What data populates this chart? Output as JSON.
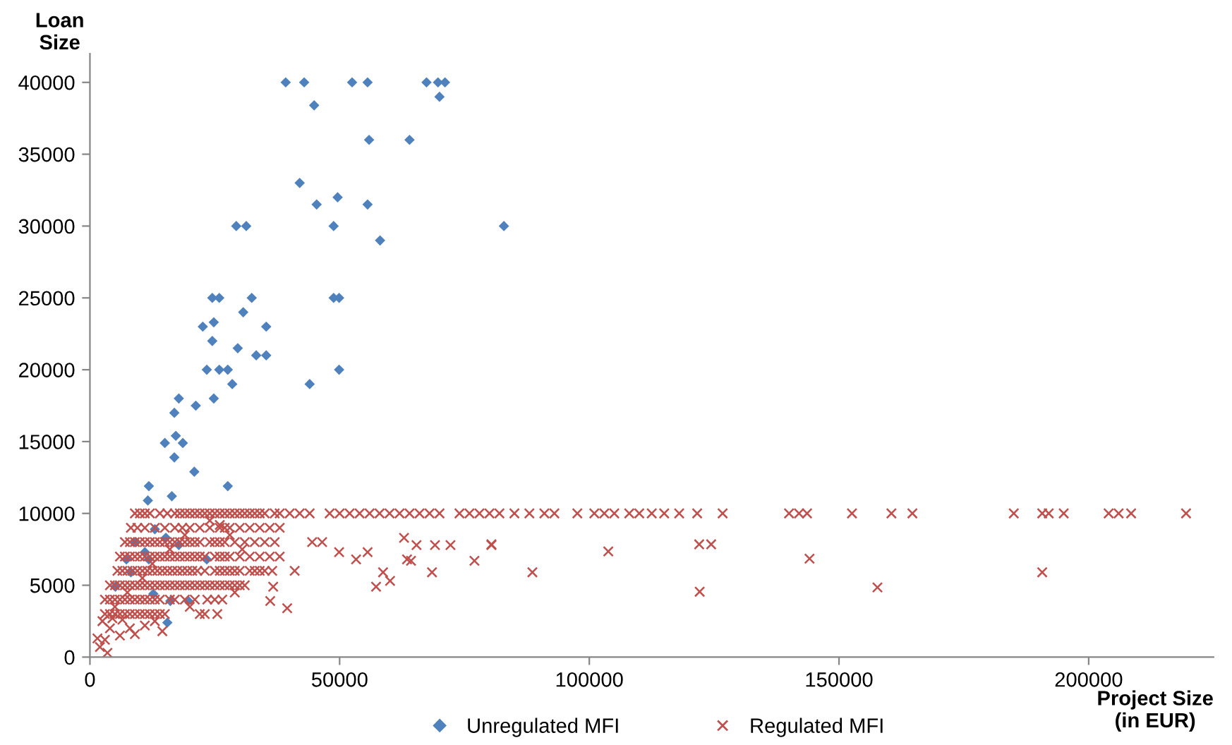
{
  "chart_data": {
    "type": "scatter",
    "xlabel": "Project Size\n(in EUR)",
    "ylabel": "Loan\nSize",
    "xlim": [
      0,
      225000
    ],
    "ylim": [
      0,
      42000
    ],
    "xticks": [
      0,
      50000,
      100000,
      150000,
      200000
    ],
    "yticks": [
      0,
      5000,
      10000,
      15000,
      20000,
      25000,
      30000,
      35000,
      40000
    ],
    "grid": false,
    "legend": "bottom",
    "series": [
      {
        "name": "Unregulated MFI",
        "color": "#4f81bd",
        "marker": "diamond",
        "x": [
          39200,
          42900,
          52500,
          55600,
          67400,
          69700,
          71100,
          44900,
          70000,
          55900,
          64000,
          42000,
          45400,
          49600,
          55600,
          29300,
          31300,
          48800,
          82900,
          58100,
          24500,
          25900,
          32400,
          48800,
          49900,
          30700,
          22600,
          24800,
          35300,
          24500,
          29600,
          33300,
          35300,
          23400,
          25900,
          27600,
          49900,
          28500,
          44000,
          17800,
          24800,
          21200,
          16900,
          15000,
          17200,
          18600,
          16900,
          20900,
          11800,
          27600,
          11600,
          16400,
          9000,
          13000,
          15200,
          11000,
          17800,
          11800,
          8200,
          23400,
          12700,
          16100,
          19700,
          15500,
          7300,
          5100
        ],
        "values": [
          40000,
          40000,
          40000,
          40000,
          40000,
          40000,
          40000,
          38400,
          39000,
          36000,
          36000,
          33000,
          31500,
          32000,
          31500,
          30000,
          30000,
          30000,
          30000,
          29000,
          25000,
          25000,
          25000,
          25000,
          25000,
          24000,
          23000,
          23300,
          23000,
          22000,
          21500,
          21000,
          21000,
          20000,
          20000,
          20000,
          20000,
          19000,
          19000,
          18000,
          18000,
          17500,
          17000,
          14900,
          15400,
          14900,
          13900,
          12900,
          11900,
          11900,
          10900,
          11200,
          8000,
          8900,
          8300,
          7300,
          7800,
          6800,
          5900,
          6800,
          4400,
          3900,
          3900,
          2400,
          6800,
          4900
        ]
      },
      {
        "name": "Regulated MFI",
        "color": "#c0504d",
        "marker": "cross",
        "x": [
          9000,
          10000,
          11000,
          12000,
          14000,
          15500,
          17000,
          18000,
          19000,
          20000,
          21000,
          22000,
          23000,
          24000,
          25000,
          26000,
          27000,
          28000,
          29000,
          30000,
          31000,
          32000,
          33000,
          34000,
          35000,
          37000,
          38000,
          40000,
          42000,
          44000,
          48000,
          50000,
          52000,
          54000,
          56000,
          58000,
          60000,
          62000,
          64000,
          66000,
          68000,
          70000,
          74000,
          76000,
          78000,
          80000,
          82000,
          85000,
          88000,
          91000,
          93000,
          97600,
          101000,
          103000,
          105000,
          108000,
          110000,
          112500,
          115000,
          118000,
          121600,
          126700,
          140000,
          142000,
          143600,
          152600,
          160500,
          164700,
          185000,
          190700,
          192000,
          195000,
          204000,
          206000,
          208500,
          219500,
          8200,
          9500,
          11000,
          13000,
          15000,
          17000,
          18500,
          20000,
          22000,
          24000,
          26000,
          27000,
          28000,
          30000,
          32000,
          34000,
          36000,
          38000,
          7000,
          8000,
          9000,
          10000,
          11000,
          12000,
          13000,
          14000,
          15000,
          16000,
          17000,
          18000,
          19000,
          20000,
          21000,
          22000,
          24000,
          25000,
          26000,
          27000,
          29000,
          31000,
          33000,
          35000,
          37000,
          44500,
          46500,
          6000,
          7000,
          8000,
          9000,
          10000,
          11000,
          12000,
          13000,
          14000,
          15000,
          16000,
          17000,
          18000,
          19000,
          20000,
          21000,
          22000,
          23000,
          25000,
          26000,
          27000,
          28000,
          30000,
          32000,
          34000,
          36000,
          38000,
          5500,
          6500,
          7500,
          8500,
          9500,
          10500,
          11500,
          12500,
          13500,
          14500,
          15500,
          16500,
          17500,
          18500,
          19500,
          20500,
          21500,
          23000,
          25000,
          26000,
          27000,
          28000,
          29000,
          30000,
          32000,
          33000,
          34000,
          35000,
          36500,
          41000,
          4000,
          5000,
          6000,
          7000,
          8000,
          9000,
          10000,
          11000,
          12000,
          13000,
          14000,
          15000,
          16000,
          17000,
          18000,
          19000,
          20000,
          21000,
          22000,
          23000,
          24000,
          25000,
          26000,
          27000,
          28000,
          29000,
          30000,
          31000,
          3000,
          4000,
          5000,
          6000,
          7000,
          8000,
          9000,
          10000,
          11000,
          12000,
          13000,
          14000,
          16000,
          17000,
          19000,
          21000,
          23500,
          25000,
          26500,
          3000,
          4000,
          5000,
          6000,
          7000,
          8000,
          9000,
          10000,
          11000,
          12000,
          13000,
          14000,
          15000,
          22000,
          23000,
          2500,
          4000,
          5000,
          6000,
          8000,
          9000,
          11000,
          13000,
          14500,
          7500,
          10500,
          12500,
          16000,
          19000,
          24000,
          28000,
          30500,
          26000,
          1500,
          2000,
          3500,
          3000,
          4500,
          6500,
          20000,
          25500,
          29000,
          80400,
          88600,
          103800,
          122000,
          124400,
          122100,
          144100,
          157700,
          190700,
          62900,
          65400,
          69100,
          72200,
          80400,
          49900,
          53300,
          55600,
          63500,
          64300,
          77000,
          58700,
          68500,
          57300,
          60100,
          36700,
          36100,
          39500
        ],
        "values": [
          10000,
          10000,
          10000,
          10000,
          10000,
          10000,
          10000,
          10000,
          10000,
          10000,
          10000,
          10000,
          10000,
          10000,
          10000,
          10000,
          10000,
          10000,
          10000,
          10000,
          10000,
          10000,
          10000,
          10000,
          10000,
          10000,
          10000,
          10000,
          10000,
          10000,
          10000,
          10000,
          10000,
          10000,
          10000,
          10000,
          10000,
          10000,
          10000,
          10000,
          10000,
          10000,
          10000,
          10000,
          10000,
          10000,
          10000,
          10000,
          10000,
          10000,
          10000,
          10000,
          10000,
          10000,
          10000,
          10000,
          10000,
          10000,
          10000,
          10000,
          10000,
          10000,
          10000,
          10000,
          10000,
          10000,
          10000,
          10000,
          10000,
          10000,
          10000,
          10000,
          10000,
          10000,
          10000,
          10000,
          9000,
          9000,
          9000,
          9000,
          9000,
          9000,
          9000,
          9000,
          9000,
          9000,
          9000,
          9000,
          9000,
          9000,
          9000,
          9000,
          9000,
          9000,
          8000,
          8000,
          8000,
          8000,
          8000,
          8000,
          8000,
          8000,
          8000,
          8000,
          8000,
          8000,
          8000,
          8000,
          8000,
          8000,
          8000,
          8000,
          8000,
          8000,
          8000,
          8000,
          8000,
          8000,
          8000,
          8000,
          8000,
          7000,
          7000,
          7000,
          7000,
          7000,
          7000,
          7000,
          7000,
          7000,
          7000,
          7000,
          7000,
          7000,
          7000,
          7000,
          7000,
          7000,
          7000,
          7000,
          7000,
          7000,
          7000,
          7000,
          7000,
          7000,
          7000,
          7000,
          6000,
          6000,
          6000,
          6000,
          6000,
          6000,
          6000,
          6000,
          6000,
          6000,
          6000,
          6000,
          6000,
          6000,
          6000,
          6000,
          6000,
          6000,
          6000,
          6000,
          6000,
          6000,
          6000,
          6000,
          6000,
          6000,
          6000,
          6000,
          6000,
          6000,
          5000,
          5000,
          5000,
          5000,
          5000,
          5000,
          5000,
          5000,
          5000,
          5000,
          5000,
          5000,
          5000,
          5000,
          5000,
          5000,
          5000,
          5000,
          5000,
          5000,
          5000,
          5000,
          5000,
          5000,
          5000,
          5000,
          5000,
          5000,
          4000,
          4000,
          4000,
          4000,
          4000,
          4000,
          4000,
          4000,
          4000,
          4000,
          4000,
          4000,
          4000,
          4000,
          4000,
          4000,
          4000,
          4000,
          4000,
          3000,
          3000,
          3000,
          3000,
          3000,
          3000,
          3000,
          3000,
          3000,
          3000,
          3000,
          3000,
          3000,
          3000,
          3000,
          2500,
          2000,
          3500,
          1500,
          2000,
          1600,
          2200,
          2500,
          1800,
          4500,
          5500,
          6500,
          7500,
          8500,
          9500,
          8500,
          7500,
          9200,
          1300,
          700,
          300,
          1200,
          2700,
          2600,
          3500,
          3000,
          4500,
          7850,
          5900,
          7350,
          7850,
          7850,
          4550,
          6850,
          4850,
          5900,
          8300,
          7800,
          7800,
          7800,
          7800,
          7300,
          6800,
          7300,
          6800,
          6700,
          6700,
          5900,
          5900,
          4900,
          5300,
          4900,
          3900,
          3400
        ]
      }
    ]
  }
}
